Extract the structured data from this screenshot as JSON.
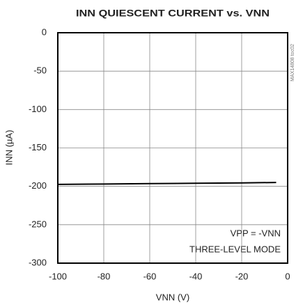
{
  "chart_data": {
    "type": "line",
    "title": "INN QUIESCENT CURRENT vs. VNN",
    "x_label": "VNN (V)",
    "y_label": "INN (µA)",
    "annotations": [
      "VPP = -VNN",
      "THREE-LEVEL MODE",
      "MAX14808 toc02"
    ],
    "x": [
      -100,
      -80,
      -60,
      -40,
      -20,
      -5
    ],
    "series": [
      {
        "color": "#000000",
        "values": [
          -197.5,
          -197,
          -196.5,
          -196,
          -195.5,
          -195
        ]
      }
    ],
    "xlim": [
      -100,
      0
    ],
    "xticks": [
      -100,
      -80,
      -60,
      -40,
      -20,
      0
    ],
    "ylim": [
      -300,
      0
    ],
    "yticks": [
      0,
      -50,
      -100,
      -150,
      -200,
      -250,
      -300
    ],
    "grid": true
  }
}
